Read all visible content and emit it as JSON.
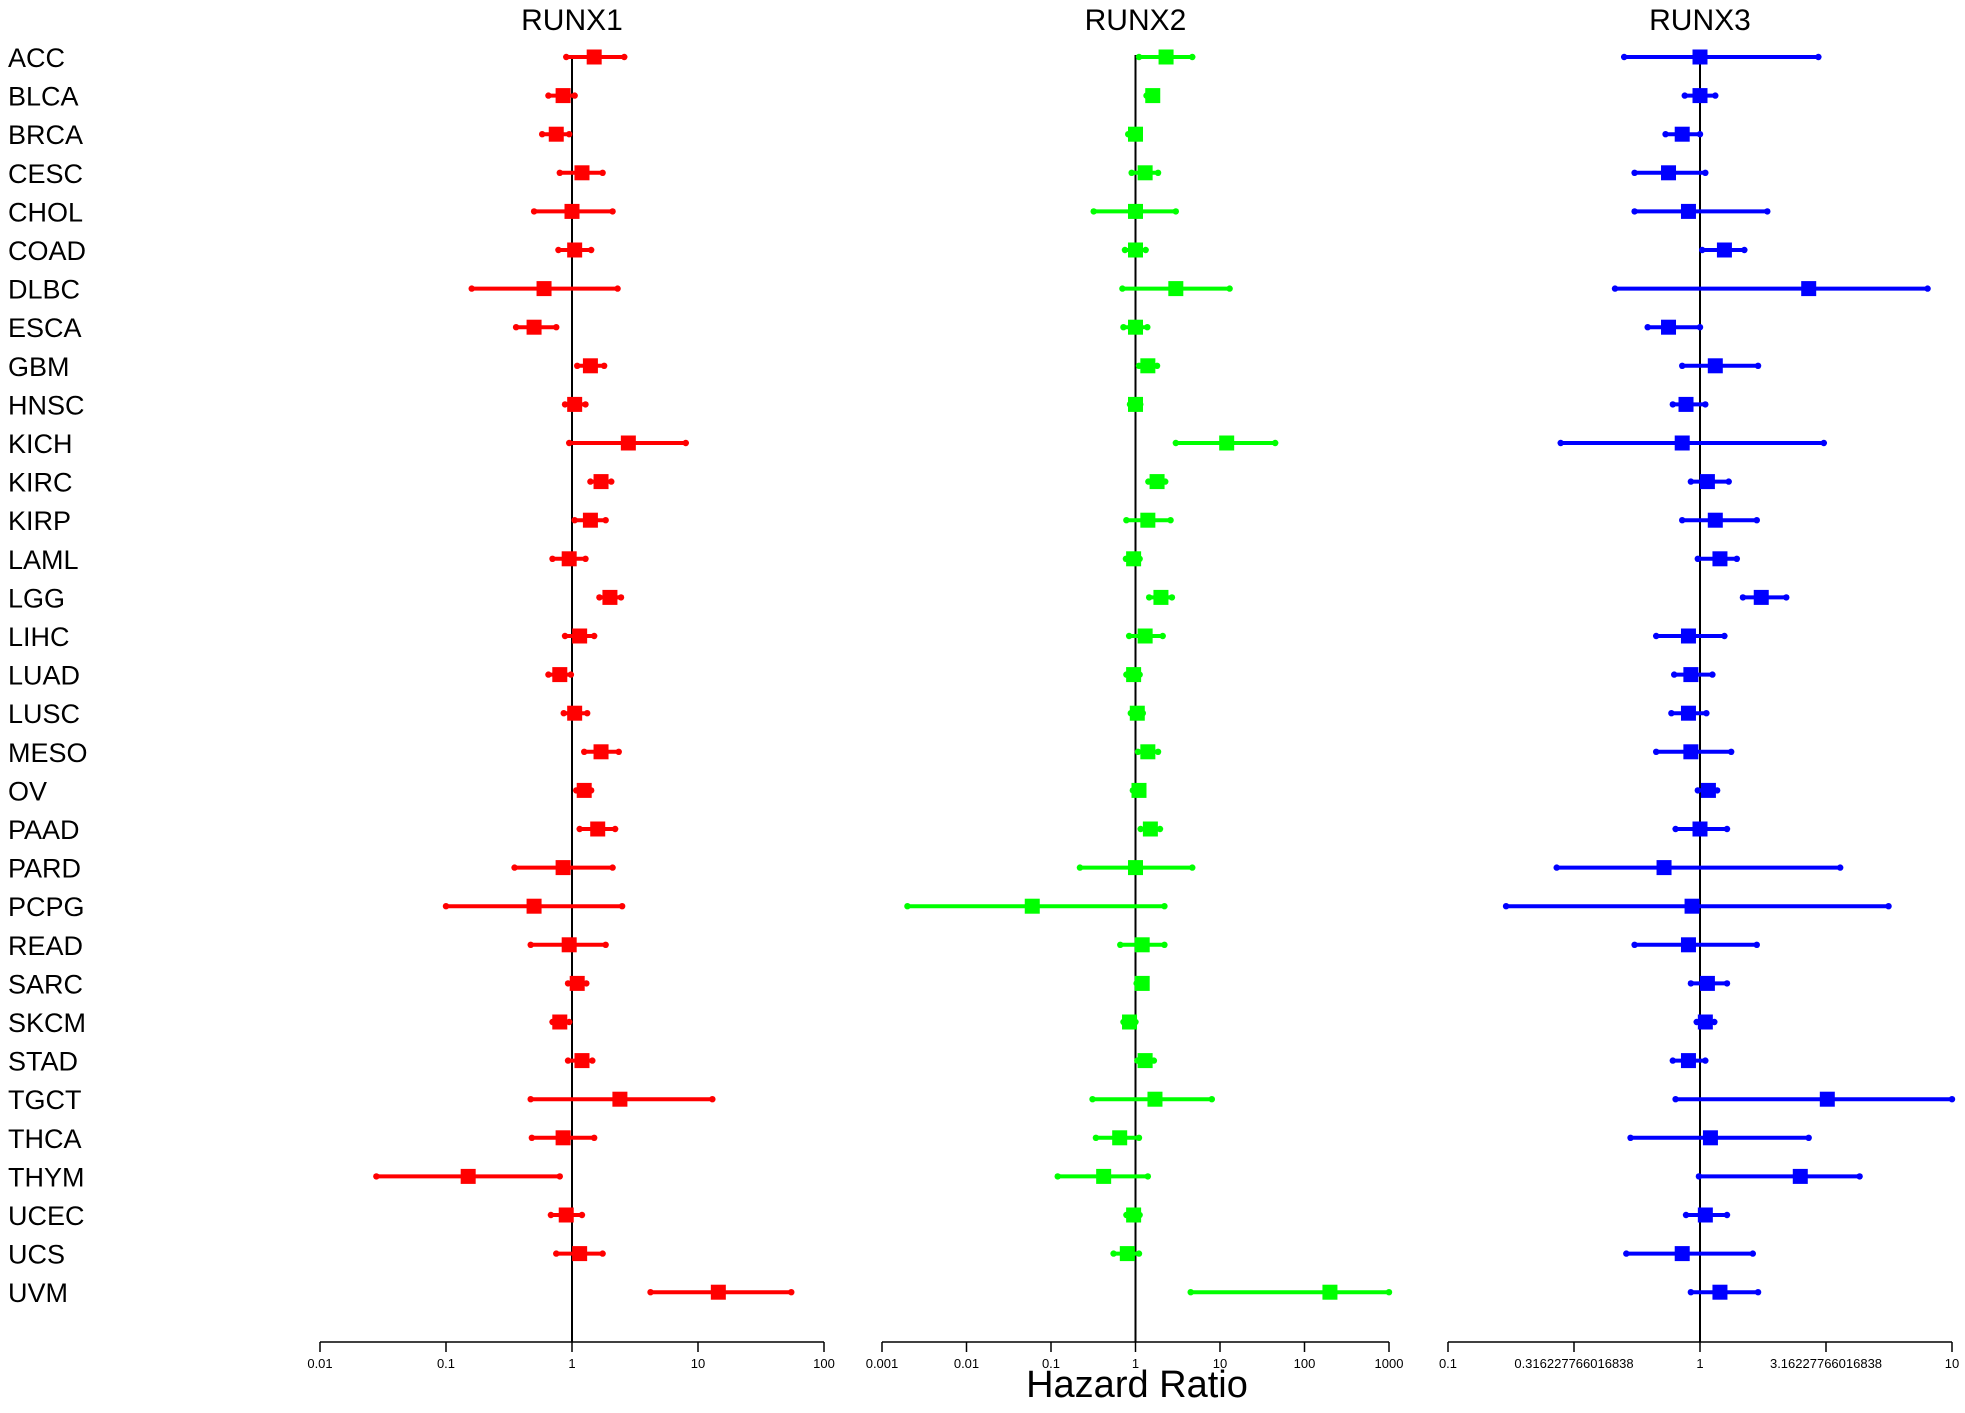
{
  "chart_data": {
    "type": "forest",
    "xlabel": "Hazard Ratio",
    "categories": [
      "ACC",
      "BLCA",
      "BRCA",
      "CESC",
      "CHOL",
      "COAD",
      "DLBC",
      "ESCA",
      "GBM",
      "HNSC",
      "KICH",
      "KIRC",
      "KIRP",
      "LAML",
      "LGG",
      "LIHC",
      "LUAD",
      "LUSC",
      "MESO",
      "OV",
      "PAAD",
      "PARD",
      "PCPG",
      "READ",
      "SARC",
      "SKCM",
      "STAD",
      "TGCT",
      "THCA",
      "THYM",
      "UCEC",
      "UCS",
      "UVM"
    ],
    "panels": [
      {
        "title": "RUNX1",
        "color": "#ff0000",
        "scale": "log",
        "xlim": [
          0.01,
          100
        ],
        "ticks": [
          0.01,
          0.1,
          1,
          10,
          100
        ],
        "tick_labels": [
          "0.01",
          "0.1",
          "1",
          "10",
          "100"
        ],
        "hr": [
          1.5,
          0.85,
          0.75,
          1.2,
          1.0,
          1.05,
          0.6,
          0.5,
          1.4,
          1.05,
          2.8,
          1.7,
          1.4,
          0.95,
          2.0,
          1.15,
          0.8,
          1.05,
          1.7,
          1.25,
          1.6,
          0.85,
          0.5,
          0.95,
          1.1,
          0.8,
          1.2,
          2.4,
          0.85,
          0.15,
          0.9,
          1.15,
          14.5
        ],
        "lower": [
          0.9,
          0.65,
          0.58,
          0.8,
          0.5,
          0.78,
          0.16,
          0.36,
          1.1,
          0.88,
          0.95,
          1.4,
          1.05,
          0.7,
          1.65,
          0.88,
          0.65,
          0.86,
          1.25,
          1.08,
          1.15,
          0.35,
          0.1,
          0.47,
          0.93,
          0.7,
          0.93,
          0.47,
          0.48,
          0.028,
          0.68,
          0.75,
          4.2
        ],
        "upper": [
          2.6,
          1.05,
          0.95,
          1.75,
          2.1,
          1.42,
          2.3,
          0.75,
          1.8,
          1.28,
          8.0,
          2.05,
          1.85,
          1.28,
          2.45,
          1.5,
          0.98,
          1.32,
          2.35,
          1.42,
          2.2,
          2.1,
          2.5,
          1.85,
          1.3,
          0.95,
          1.45,
          13.0,
          1.5,
          0.8,
          1.2,
          1.75,
          55.0
        ]
      },
      {
        "title": "RUNX2",
        "color": "#00ff00",
        "scale": "log",
        "xlim": [
          0.001,
          1000
        ],
        "ticks": [
          0.001,
          0.01,
          0.1,
          1,
          10,
          100,
          1000
        ],
        "tick_labels": [
          "0.001",
          "0.01",
          "0.1",
          "1",
          "10",
          "100",
          "1000"
        ],
        "hr": [
          2.3,
          1.6,
          1.0,
          1.3,
          1.0,
          1.0,
          3.0,
          1.0,
          1.4,
          1.0,
          12.0,
          1.8,
          1.4,
          0.95,
          2.0,
          1.3,
          0.95,
          1.05,
          1.4,
          1.1,
          1.5,
          1.0,
          0.06,
          1.2,
          1.2,
          0.85,
          1.3,
          1.7,
          0.65,
          0.42,
          0.95,
          0.8,
          200.0
        ],
        "lower": [
          1.1,
          1.35,
          0.82,
          0.9,
          0.32,
          0.75,
          0.7,
          0.72,
          1.1,
          0.86,
          3.0,
          1.42,
          0.78,
          0.77,
          1.45,
          0.84,
          0.78,
          0.88,
          1.07,
          0.93,
          1.15,
          0.22,
          0.002,
          0.66,
          1.03,
          0.72,
          1.05,
          0.31,
          0.34,
          0.12,
          0.78,
          0.55,
          4.5
        ],
        "upper": [
          4.7,
          1.78,
          1.1,
          1.85,
          3.0,
          1.32,
          13.0,
          1.38,
          1.8,
          1.14,
          45.0,
          2.25,
          2.6,
          1.12,
          2.7,
          2.1,
          1.12,
          1.22,
          1.85,
          1.22,
          1.95,
          4.7,
          2.2,
          2.2,
          1.32,
          1.0,
          1.65,
          8.0,
          1.1,
          1.4,
          1.12,
          1.1,
          1000.0
        ]
      },
      {
        "title": "RUNX3",
        "color": "#0000ff",
        "scale": "log",
        "xlim": [
          0.1,
          10
        ],
        "ticks": [
          0.1,
          0.316227766016838,
          1,
          3.16227766016838,
          10
        ],
        "tick_labels": [
          "0.1",
          "0.316227766016838",
          "1",
          "3.16227766016838",
          "10"
        ],
        "hr": [
          1.0,
          1.0,
          0.85,
          0.75,
          0.9,
          1.25,
          2.7,
          0.75,
          1.15,
          0.88,
          0.85,
          1.07,
          1.15,
          1.2,
          1.75,
          0.9,
          0.92,
          0.9,
          0.92,
          1.08,
          1.0,
          0.72,
          0.93,
          0.9,
          1.07,
          1.05,
          0.9,
          3.2,
          1.1,
          2.5,
          1.05,
          0.85,
          1.2
        ],
        "lower": [
          0.5,
          0.87,
          0.73,
          0.55,
          0.55,
          1.02,
          0.46,
          0.62,
          0.85,
          0.78,
          0.28,
          0.92,
          0.85,
          0.98,
          1.48,
          0.67,
          0.79,
          0.77,
          0.67,
          0.98,
          0.8,
          0.27,
          0.17,
          0.55,
          0.92,
          0.97,
          0.78,
          0.8,
          0.53,
          0.99,
          0.88,
          0.51,
          0.92
        ],
        "upper": [
          2.95,
          1.15,
          1.0,
          1.05,
          1.85,
          1.5,
          8.0,
          1.0,
          1.7,
          1.05,
          3.1,
          1.3,
          1.68,
          1.4,
          2.2,
          1.25,
          1.12,
          1.06,
          1.33,
          1.17,
          1.28,
          3.6,
          5.6,
          1.68,
          1.28,
          1.14,
          1.05,
          10.0,
          2.7,
          4.3,
          1.28,
          1.62,
          1.7
        ]
      }
    ]
  }
}
